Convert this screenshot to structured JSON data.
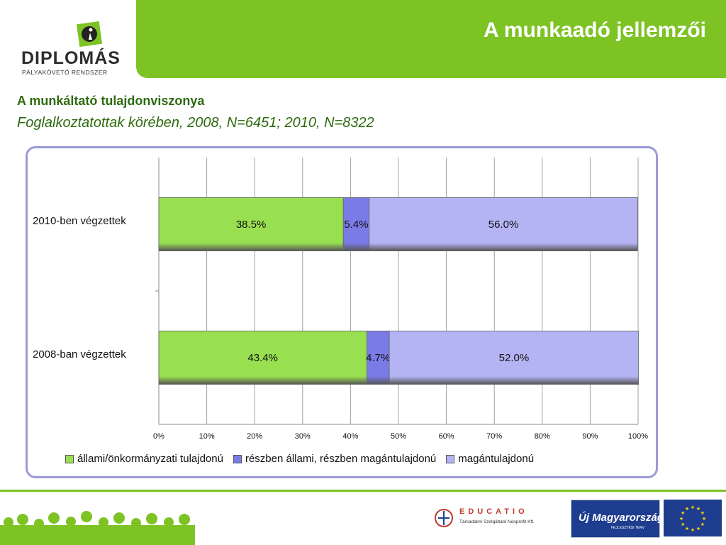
{
  "header": {
    "logo_title": "DIPLOMÁS",
    "logo_subtitle": "PÁLYAKÖVETŐ RENDSZER",
    "slide_title": "A munkaadó jellemzői"
  },
  "heading": "A munkáltató tulajdonviszonya",
  "subheading": "Foglalkoztatottak körében, 2008, N=6451; 2010, N=8322",
  "colors": {
    "header_green": "#7dc324",
    "heading_green": "#2d6b0f",
    "frame_border": "#9b9bd6",
    "series_allami": "#99e050",
    "series_reszben": "#7b7be8",
    "series_magan": "#b4b4f4"
  },
  "chart_data": {
    "type": "bar",
    "orientation": "horizontal",
    "stacked": true,
    "categories": [
      "2010-ben végzettek",
      "2008-ban végzettek"
    ],
    "series": [
      {
        "name": "állami/önkormányzati tulajdonú",
        "values": [
          38.5,
          43.4
        ],
        "labels": [
          "38.5%",
          "43.4%"
        ],
        "color": "#99e050"
      },
      {
        "name": "részben állami, részben magántulajdonú",
        "values": [
          5.4,
          4.7
        ],
        "labels": [
          "5.4%",
          "4.7%"
        ],
        "color": "#7b7be8"
      },
      {
        "name": "magántulajdonú",
        "values": [
          56.0,
          52.0
        ],
        "labels": [
          "56.0%",
          "52.0%"
        ],
        "color": "#b4b4f4"
      }
    ],
    "xlim": [
      0,
      100
    ],
    "x_ticks": [
      "0%",
      "10%",
      "20%",
      "30%",
      "40%",
      "50%",
      "60%",
      "70%",
      "80%",
      "90%",
      "100%"
    ],
    "grid": "vertical",
    "legend_position": "bottom"
  },
  "footer": {
    "educatio_word": "EDUCATIO",
    "educatio_subtitle": "Társadalmi Szolgáltató Nonprofit Kft.",
    "umft_text": "Új Magyarország",
    "umft_subtitle": "FEJLESZTÉSI TERV",
    "icons": [
      "educatio-logo-icon",
      "eu-flag-icon",
      "crowd-silhouette-icon"
    ]
  }
}
